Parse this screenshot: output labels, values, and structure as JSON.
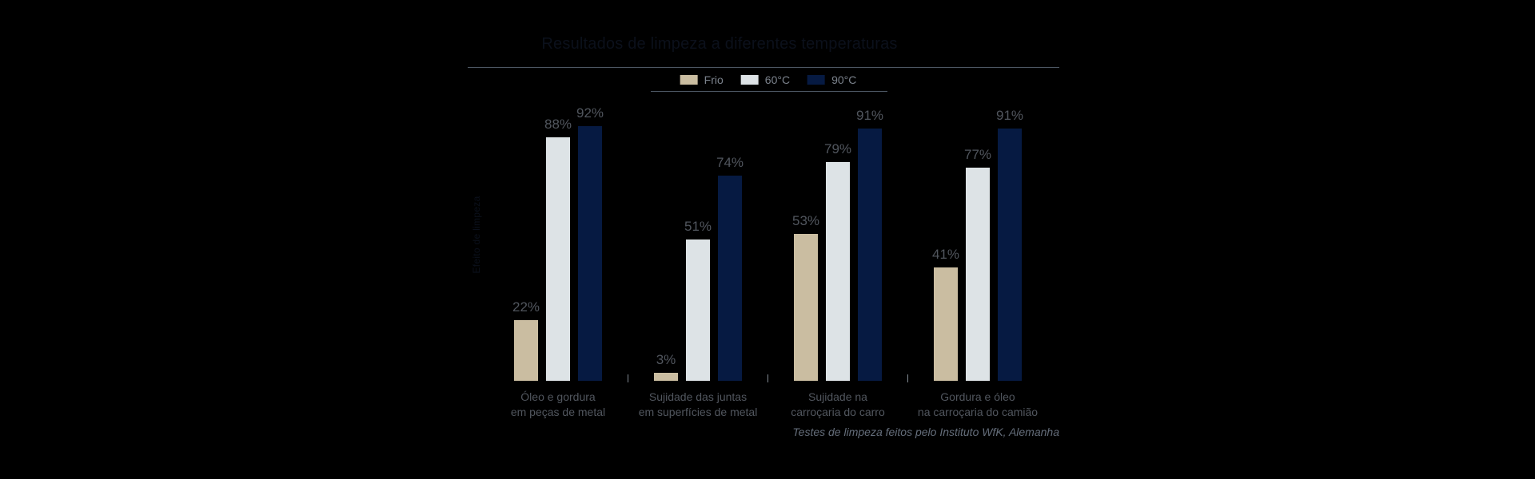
{
  "background": "#000000",
  "colors": {
    "bg": "#000000",
    "series-frio": "#cabda1",
    "series-60": "#dde3e6",
    "series-90": "#061a42",
    "title-text": "#0b101b",
    "rule": "#4c5763",
    "legend-label": "#7b828c",
    "value-label": "#51565e",
    "category-label": "#51565e",
    "tick": "#818992",
    "footer-text": "#646d7a"
  },
  "legend": {
    "items": [
      "Frio",
      "60°C",
      "90°C"
    ]
  },
  "footer": {
    "source_note": "Testes de limpeza feitos pelo Instituto WfK, Alemanha"
  },
  "chart_data": {
    "type": "bar",
    "title": "Resultados de limpeza a diferentes temperaturas",
    "ylabel": "Efeito de limpeza",
    "ylim": [
      0,
      100
    ],
    "value_suffix": "%",
    "grid": false,
    "legend_position": "top",
    "categories": [
      "Óleo e gordura\nem peças de metal",
      "Sujidade das juntas\nem superfícies de metal",
      "Sujidade na\ncarroçaria do carro",
      "Gordura e óleo\nna carroçaria do camião"
    ],
    "series": [
      {
        "name": "Frio",
        "color": "#cabda1",
        "values": [
          22,
          3,
          53,
          41
        ]
      },
      {
        "name": "60°C",
        "color": "#dde3e6",
        "values": [
          88,
          51,
          79,
          77
        ]
      },
      {
        "name": "90°C",
        "color": "#061a42",
        "values": [
          92,
          74,
          91,
          91
        ]
      }
    ],
    "source_note": "Testes de limpeza feitos pelo Instituto WfK, Alemanha"
  }
}
